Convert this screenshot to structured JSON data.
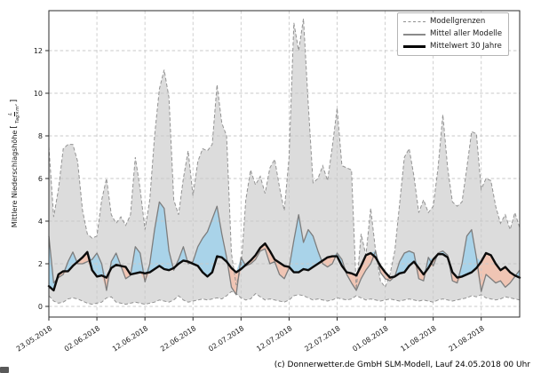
{
  "caption": "(c) Donnerwetter.de GmbH SLM-Modell, Lauf 24.05.2018 00 Uhr",
  "ylabel": {
    "text": "Mittlere Niederschlagshöhe",
    "bracket_open": "[",
    "unit_numerator": "L",
    "unit_denominator": "Tag×m²",
    "bracket_close": "]"
  },
  "legend": {
    "items": [
      {
        "label": "Modellgrenzen",
        "style": "dashed"
      },
      {
        "label": "Mittel aller Modelle",
        "style": "mean"
      },
      {
        "label": "Mittelwert 30 Jahre",
        "style": "climate"
      }
    ]
  },
  "chart_data": {
    "type": "line",
    "title": "",
    "xlabel": "",
    "ylabel": "Mittlere Niederschlagshöhe [L/(Tag×m²)]",
    "ylim": [
      -0.5,
      13.9
    ],
    "x_is_days_from": "23.05.2018",
    "x_range_days": [
      0,
      98
    ],
    "grid": true,
    "legend_position": "upper right",
    "x_tick_days": [
      0,
      10,
      20,
      30,
      40,
      50,
      60,
      70,
      80,
      90
    ],
    "x_tick_labels": [
      "23.05.2018",
      "02.06.2018",
      "12.06.2018",
      "22.06.2018",
      "02.07.2018",
      "12.07.2018",
      "22.07.2018",
      "01.08.2018",
      "11.08.2018",
      "21.08.2018"
    ],
    "y_ticks": [
      0,
      2,
      4,
      6,
      8,
      10,
      12
    ],
    "colors": {
      "band": "#dcdcdc",
      "fill_above_mean": "#a9d3e9",
      "fill_below_mean": "#f0c5b4",
      "bound_line": "#939393",
      "mean_line": "#7d7d7d",
      "climate_line": "#0b0b0b",
      "grid": "#c9c9c9",
      "frame": "#2b2b2b",
      "tick_text": "#1a1a1a"
    },
    "series": [
      {
        "name": "Modellgrenzen (oberes Limit)",
        "values": [
          7.5,
          4.2,
          5.5,
          7.4,
          7.6,
          7.6,
          6.8,
          4.5,
          3.4,
          3.2,
          3.3,
          5.0,
          6.0,
          4.3,
          3.9,
          4.2,
          3.8,
          4.3,
          7.0,
          5.5,
          3.6,
          5.0,
          8.0,
          10.2,
          11.1,
          9.8,
          5.0,
          4.3,
          6.0,
          7.3,
          5.2,
          6.8,
          7.4,
          7.3,
          7.6,
          10.4,
          8.6,
          8.0,
          2.5,
          1.0,
          1.8,
          5.0,
          6.4,
          5.7,
          6.1,
          5.3,
          6.5,
          6.9,
          5.6,
          4.5,
          7.0,
          13.3,
          12.0,
          13.5,
          9.5,
          5.8,
          6.0,
          6.6,
          5.9,
          7.5,
          9.3,
          6.6,
          6.5,
          6.4,
          0.8,
          3.4,
          2.4,
          4.6,
          2.6,
          1.2,
          0.9,
          1.5,
          2.6,
          4.8,
          7.0,
          7.4,
          6.1,
          4.4,
          5.0,
          4.4,
          4.7,
          6.5,
          9.0,
          6.5,
          4.9,
          4.7,
          4.9,
          6.5,
          8.2,
          8.1,
          5.5,
          6.0,
          5.9,
          4.7,
          3.9,
          4.3,
          3.6,
          4.4,
          3.7
        ]
      },
      {
        "name": "Modellgrenzen (unteres Limit)",
        "values": [
          0.5,
          0.25,
          0.15,
          0.2,
          0.35,
          0.4,
          0.35,
          0.25,
          0.15,
          0.1,
          0.15,
          0.2,
          0.4,
          0.45,
          0.2,
          0.15,
          0.1,
          0.15,
          0.2,
          0.15,
          0.1,
          0.15,
          0.2,
          0.3,
          0.25,
          0.2,
          0.3,
          0.5,
          0.3,
          0.2,
          0.25,
          0.3,
          0.35,
          0.3,
          0.35,
          0.4,
          0.35,
          0.5,
          0.7,
          0.6,
          0.4,
          0.3,
          0.35,
          0.6,
          0.45,
          0.3,
          0.35,
          0.3,
          0.25,
          0.2,
          0.3,
          0.5,
          0.55,
          0.5,
          0.4,
          0.3,
          0.35,
          0.3,
          0.25,
          0.3,
          0.4,
          0.35,
          0.3,
          0.35,
          0.5,
          0.4,
          0.3,
          0.35,
          0.3,
          0.25,
          0.3,
          0.35,
          0.3,
          0.25,
          0.3,
          0.35,
          0.3,
          0.25,
          0.3,
          0.25,
          0.2,
          0.3,
          0.35,
          0.3,
          0.25,
          0.3,
          0.35,
          0.4,
          0.5,
          0.45,
          0.55,
          0.4,
          0.35,
          0.3,
          0.35,
          0.45,
          0.4,
          0.35,
          0.3
        ]
      },
      {
        "name": "Mittel aller Modelle",
        "values": [
          3.3,
          1.1,
          1.35,
          1.5,
          2.1,
          2.55,
          2.0,
          2.0,
          2.1,
          2.2,
          2.5,
          2.0,
          0.75,
          2.1,
          2.5,
          1.9,
          1.3,
          1.45,
          2.8,
          2.5,
          1.15,
          2.0,
          3.6,
          4.9,
          4.6,
          2.6,
          1.7,
          2.2,
          2.8,
          2.0,
          2.1,
          2.8,
          3.2,
          3.5,
          4.1,
          4.7,
          3.4,
          2.3,
          0.9,
          0.55,
          2.3,
          1.9,
          2.0,
          2.2,
          2.6,
          2.7,
          2.0,
          2.1,
          1.5,
          1.3,
          1.8,
          3.1,
          4.3,
          3.0,
          3.6,
          3.3,
          2.6,
          2.0,
          1.85,
          2.0,
          2.5,
          2.2,
          1.5,
          1.1,
          0.75,
          1.3,
          1.7,
          2.0,
          2.6,
          1.6,
          1.3,
          1.2,
          1.4,
          2.1,
          2.5,
          2.6,
          2.5,
          1.3,
          1.2,
          2.3,
          1.9,
          2.5,
          2.6,
          2.4,
          1.2,
          1.1,
          2.0,
          3.3,
          3.6,
          2.3,
          0.7,
          1.5,
          1.3,
          1.1,
          1.2,
          0.9,
          1.1,
          1.4,
          1.7
        ]
      },
      {
        "name": "Mittelwert 30 Jahre",
        "values": [
          0.95,
          0.75,
          1.5,
          1.65,
          1.65,
          1.9,
          2.1,
          2.3,
          2.55,
          1.7,
          1.4,
          1.45,
          1.35,
          1.8,
          1.95,
          1.9,
          1.85,
          1.5,
          1.55,
          1.6,
          1.55,
          1.6,
          1.75,
          1.9,
          1.75,
          1.7,
          1.8,
          2.0,
          2.15,
          2.1,
          2.0,
          1.9,
          1.6,
          1.4,
          1.6,
          2.35,
          2.3,
          2.1,
          1.8,
          1.6,
          1.75,
          1.95,
          2.15,
          2.4,
          2.75,
          2.95,
          2.6,
          2.2,
          2.05,
          1.9,
          1.85,
          1.6,
          1.6,
          1.75,
          1.7,
          1.85,
          2.0,
          2.15,
          2.3,
          2.35,
          2.35,
          1.9,
          1.6,
          1.55,
          1.45,
          1.9,
          2.4,
          2.5,
          2.3,
          1.9,
          1.6,
          1.35,
          1.4,
          1.55,
          1.6,
          1.9,
          2.1,
          1.8,
          1.5,
          1.8,
          2.2,
          2.45,
          2.45,
          2.3,
          1.6,
          1.35,
          1.4,
          1.5,
          1.6,
          1.8,
          2.1,
          2.5,
          2.4,
          2.0,
          1.7,
          1.85,
          1.6,
          1.45,
          1.35
        ]
      }
    ]
  }
}
